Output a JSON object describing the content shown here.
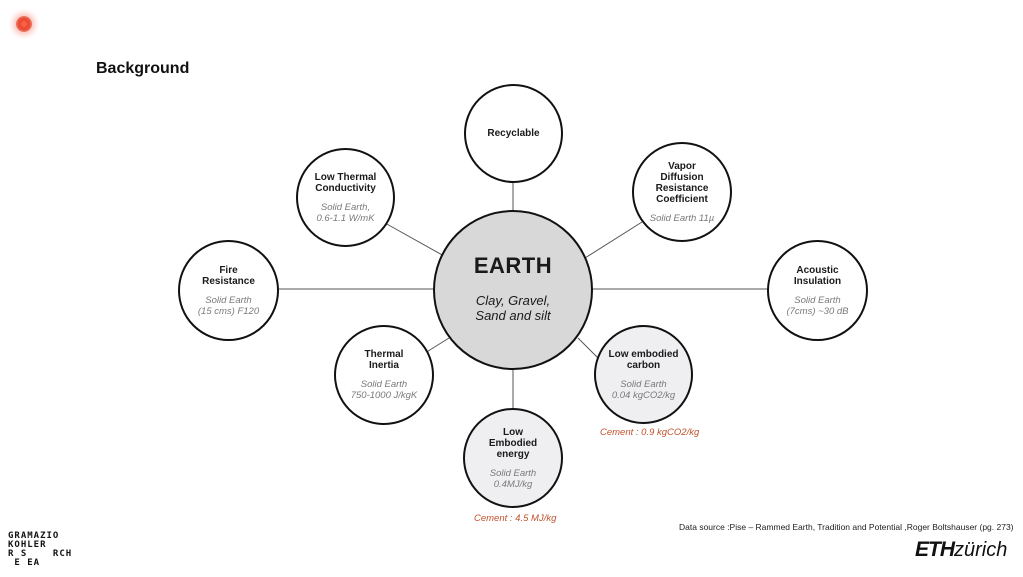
{
  "page": {
    "title": "Background"
  },
  "center": {
    "title": "EARTH",
    "subtitle_line1": "Clay, Gravel,",
    "subtitle_line2": "Sand and silt"
  },
  "nodes": {
    "recyclable": {
      "lines": [
        "Recyclable"
      ]
    },
    "low_thermal": {
      "lines": [
        "Low Thermal",
        "Conductivity"
      ],
      "value": [
        "Solid Earth,",
        "0.6-1.1 W/mK"
      ]
    },
    "vapor": {
      "lines": [
        "Vapor",
        "Diffusion",
        "Resistance",
        "Coefficient"
      ],
      "value": [
        "Solid Earth 11µ"
      ]
    },
    "fire": {
      "lines": [
        "Fire",
        "Resistance"
      ],
      "value": [
        "Solid Earth",
        "(15 cms) F120"
      ]
    },
    "acoustic": {
      "lines": [
        "Acoustic",
        "Insulation"
      ],
      "value": [
        "Solid Earth",
        "(7cms) ~30 dB"
      ]
    },
    "thermal_inertia": {
      "lines": [
        "Thermal",
        "Inertia"
      ],
      "value": [
        "Solid Earth",
        "750-1000 J/kgK"
      ]
    },
    "low_carbon": {
      "lines": [
        "Low embodied",
        "carbon"
      ],
      "value": [
        "Solid Earth",
        "0.04 kgCO2/kg"
      ]
    },
    "low_energy": {
      "lines": [
        "Low",
        "Embodied",
        "energy"
      ],
      "value": [
        "Solid Earth",
        "0.4MJ/kg"
      ]
    }
  },
  "cement": {
    "carbon": "Cement : 0.9 kgCO2/kg",
    "energy": "Cement : 4.5 MJ/kg"
  },
  "footer": {
    "source": "Data source :Pise – Rammed Earth, Tradition and Potential ,Roger Boltshauser (pg. 273)",
    "gk_logo": [
      "GRAMAZIO",
      "KOHLER",
      "R S    RCH",
      " E EA"
    ],
    "eth_logo_bold": "ETH",
    "eth_logo_light": "zürich"
  },
  "colors": {
    "accent_text": "#c0522d",
    "center_fill": "#d8d8d9",
    "shaded_fill": "#efeff1",
    "rec_dot": "#e8472f"
  }
}
